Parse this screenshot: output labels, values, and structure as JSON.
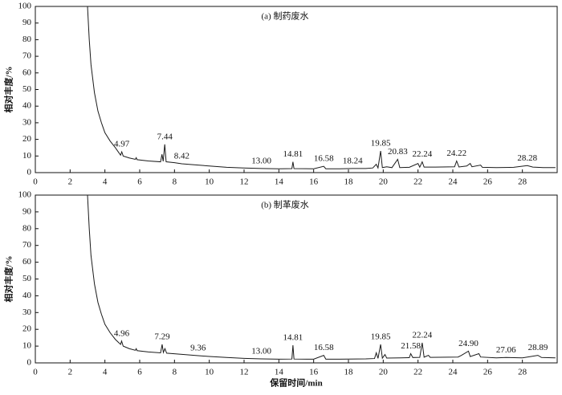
{
  "chart_data": [
    {
      "type": "line",
      "title": "(a) 制药废水",
      "ylabel": "相对丰度/%",
      "color": "#1a1a1a",
      "xlim": [
        0,
        30
      ],
      "ylim": [
        0,
        100
      ],
      "xticks": [
        0,
        2,
        4,
        6,
        8,
        10,
        12,
        14,
        16,
        18,
        20,
        22,
        24,
        26,
        28
      ],
      "yticks": [
        0,
        10,
        20,
        30,
        40,
        50,
        60,
        70,
        80,
        90,
        100
      ],
      "x": [
        3.0,
        3.1,
        3.2,
        3.4,
        3.6,
        3.8,
        4.0,
        4.3,
        4.6,
        4.9,
        4.97,
        5.05,
        5.4,
        5.75,
        5.8,
        5.85,
        6.5,
        7.2,
        7.28,
        7.35,
        7.44,
        7.52,
        8.0,
        8.42,
        9,
        10,
        11,
        12,
        13,
        14,
        14.75,
        14.81,
        14.87,
        16.0,
        16.58,
        16.7,
        17.5,
        18.24,
        19,
        19.4,
        19.6,
        19.7,
        19.85,
        19.95,
        20.2,
        20.5,
        20.83,
        20.95,
        21.5,
        22.0,
        22.1,
        22.24,
        22.35,
        23,
        24.1,
        24.22,
        24.35,
        24.8,
        25.0,
        25.1,
        25.6,
        25.7,
        26.5,
        27.5,
        28.28,
        28.6,
        29.2,
        29.9
      ],
      "values": [
        100,
        80,
        65,
        48,
        37,
        30,
        24,
        19,
        15,
        10.5,
        12.5,
        10,
        8.8,
        8,
        9,
        7.8,
        7,
        6.5,
        11,
        6.8,
        17,
        6.5,
        6,
        5.3,
        4.8,
        4,
        3.2,
        2.8,
        2.5,
        2.3,
        2.4,
        6.5,
        2.4,
        2.3,
        3.8,
        2.3,
        2.3,
        2.5,
        2.5,
        2.8,
        5,
        2.8,
        13,
        3,
        3.5,
        3,
        8,
        3,
        3.2,
        5.5,
        3.3,
        6.5,
        3.3,
        3.3,
        3.5,
        7,
        3.4,
        4,
        5.5,
        3.5,
        4.5,
        3.2,
        3,
        3.2,
        4.2,
        3.3,
        3,
        3
      ],
      "annotations": [
        {
          "text": "4.97",
          "x": 4.97,
          "y": 12.5
        },
        {
          "text": "7.44",
          "x": 7.44,
          "y": 17
        },
        {
          "text": "8.42",
          "x": 8.42,
          "y": 5.3
        },
        {
          "text": "13.00",
          "x": 13.0,
          "y": 2.5
        },
        {
          "text": "14.81",
          "x": 14.81,
          "y": 6.5
        },
        {
          "text": "16.58",
          "x": 16.58,
          "y": 3.8
        },
        {
          "text": "18.24",
          "x": 18.24,
          "y": 2.5
        },
        {
          "text": "19.85",
          "x": 19.85,
          "y": 13
        },
        {
          "text": "20.83",
          "x": 20.83,
          "y": 8
        },
        {
          "text": "22.24",
          "x": 22.24,
          "y": 6.5
        },
        {
          "text": "24.22",
          "x": 24.22,
          "y": 7
        },
        {
          "text": "28.28",
          "x": 28.28,
          "y": 4.2
        }
      ]
    },
    {
      "type": "line",
      "title": "(b) 制革废水",
      "ylabel": "相对丰度/%",
      "xlabel": "保留时间/min",
      "color": "#1a1a1a",
      "xlim": [
        0,
        30
      ],
      "ylim": [
        0,
        100
      ],
      "xticks": [
        0,
        2,
        4,
        6,
        8,
        10,
        12,
        14,
        16,
        18,
        20,
        22,
        24,
        26,
        28
      ],
      "yticks": [
        0,
        10,
        20,
        30,
        40,
        50,
        60,
        70,
        80,
        90,
        100
      ],
      "x": [
        3.0,
        3.1,
        3.2,
        3.4,
        3.6,
        3.8,
        4.0,
        4.3,
        4.6,
        4.9,
        4.96,
        5.05,
        5.4,
        5.75,
        5.8,
        5.85,
        6.5,
        7.2,
        7.29,
        7.36,
        7.45,
        7.55,
        8.5,
        9.36,
        10,
        11,
        12,
        13,
        14,
        14.75,
        14.81,
        14.87,
        16.0,
        16.58,
        16.7,
        17.5,
        19,
        19.5,
        19.6,
        19.7,
        19.85,
        19.95,
        20.1,
        20.2,
        21.0,
        21.5,
        21.58,
        21.7,
        22.1,
        22.24,
        22.35,
        22.6,
        22.7,
        24.3,
        24.5,
        24.9,
        25.0,
        25.5,
        25.6,
        26.5,
        27.06,
        28,
        28.89,
        29.1,
        29.9
      ],
      "values": [
        100,
        80,
        64,
        47,
        36,
        29,
        23,
        18,
        14,
        11,
        13,
        10,
        8.5,
        7.5,
        8.5,
        7.3,
        6.5,
        6,
        11,
        6.2,
        8.5,
        5.8,
        5,
        4.3,
        3.8,
        3.2,
        2.7,
        2.4,
        2.2,
        2.3,
        10.5,
        2.3,
        2.2,
        4.5,
        2.2,
        2.2,
        2.4,
        2.6,
        6,
        2.7,
        11,
        2.8,
        5,
        2.9,
        3,
        3.1,
        5.5,
        3.2,
        3.3,
        12,
        3.4,
        4.5,
        3.3,
        3.5,
        4.5,
        7,
        3.8,
        5.5,
        3.5,
        3,
        3.2,
        3,
        4.5,
        3.2,
        3
      ],
      "annotations": [
        {
          "text": "4.96",
          "x": 4.96,
          "y": 13
        },
        {
          "text": "7.29",
          "x": 7.29,
          "y": 11
        },
        {
          "text": "9.36",
          "x": 9.36,
          "y": 4.3
        },
        {
          "text": "13.00",
          "x": 13.0,
          "y": 2.4
        },
        {
          "text": "14.81",
          "x": 14.81,
          "y": 10.5
        },
        {
          "text": "16.58",
          "x": 16.58,
          "y": 4.5
        },
        {
          "text": "19.85",
          "x": 19.85,
          "y": 11
        },
        {
          "text": "21.58",
          "x": 21.58,
          "y": 5.5
        },
        {
          "text": "22.24",
          "x": 22.24,
          "y": 12
        },
        {
          "text": "24.90",
          "x": 24.9,
          "y": 7
        },
        {
          "text": "27.06",
          "x": 27.06,
          "y": 3.2
        },
        {
          "text": "28.89",
          "x": 28.89,
          "y": 4.5
        }
      ]
    }
  ]
}
